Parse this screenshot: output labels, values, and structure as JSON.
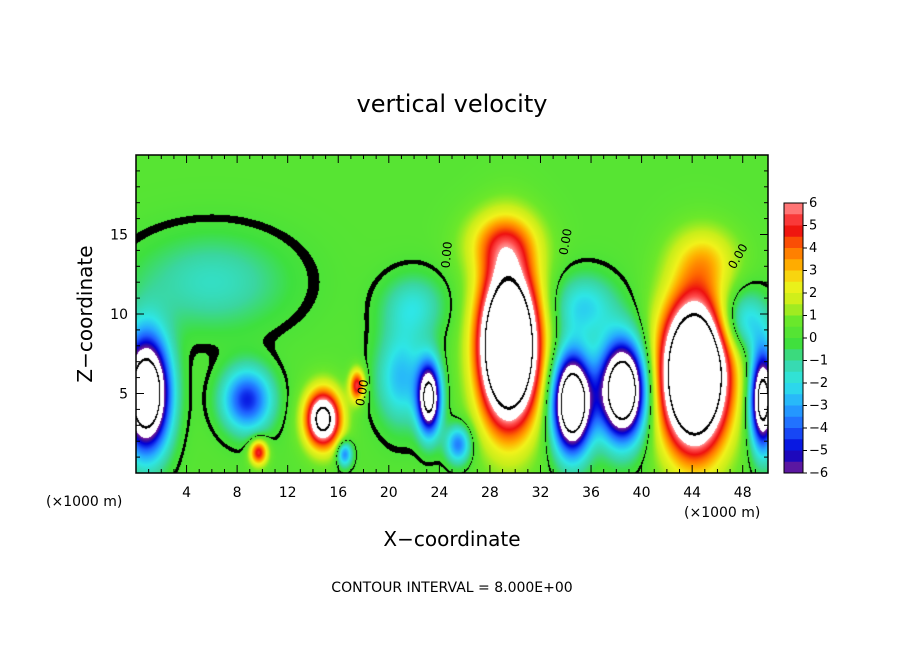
{
  "chart_data": {
    "type": "heatmap",
    "title": "vertical velocity",
    "xlabel": "X−coordinate",
    "ylabel": "Z−coordinate",
    "x_unit_left": "(×1000 m)",
    "x_unit_right": "(×1000 m)",
    "xlim": [
      0,
      50
    ],
    "ylim": [
      0,
      20
    ],
    "x_ticks": [
      4,
      8,
      12,
      16,
      20,
      24,
      28,
      32,
      36,
      40,
      44,
      48
    ],
    "x_tick_labels": [
      "4",
      "8",
      "12",
      "16",
      "20",
      "24",
      "28",
      "32",
      "36",
      "40",
      "44",
      "48"
    ],
    "y_ticks": [
      5,
      10,
      15
    ],
    "y_tick_labels": [
      "5",
      "10",
      "15"
    ],
    "colorbar": {
      "min": -6,
      "max": 6,
      "ticks": [
        6,
        5,
        4,
        3,
        2,
        1,
        0,
        -1,
        -2,
        -3,
        -4,
        -5,
        -6
      ],
      "tick_labels": [
        "6",
        "5",
        "4",
        "3",
        "2",
        "1",
        "0",
        "−1",
        "−2",
        "−3",
        "−4",
        "−5",
        "−6"
      ],
      "colors": [
        "#7b1fa2",
        "#3a0fa0",
        "#0000d8",
        "#1f5fff",
        "#26aaff",
        "#2ee6e6",
        "#3ad6a0",
        "#3ee03e",
        "#9be81c",
        "#f2f21a",
        "#ffb000",
        "#ff6a00",
        "#ee1010",
        "#ff4040",
        "#ff9090",
        "#ffffff"
      ]
    },
    "background_value": 0.3,
    "features": [
      {
        "kind": "updraft",
        "x": 29.5,
        "z": 8.0,
        "amp": 15,
        "sx": 2.3,
        "sz": 4.8
      },
      {
        "kind": "updraft",
        "x": 44.2,
        "z": 6.2,
        "amp": 15,
        "sx": 2.6,
        "sz": 4.6
      },
      {
        "kind": "updraft",
        "x": 14.8,
        "z": 3.4,
        "amp": 9,
        "sx": 1.4,
        "sz": 1.8
      },
      {
        "kind": "updraft",
        "x": 9.7,
        "z": 1.3,
        "amp": 5,
        "sx": 0.7,
        "sz": 0.8
      },
      {
        "kind": "updraft",
        "x": 17.5,
        "z": 5.5,
        "amp": 5,
        "sx": 0.6,
        "sz": 1.0
      },
      {
        "kind": "updraft",
        "x": 29.0,
        "z": 14.5,
        "amp": 3,
        "sx": 2.8,
        "sz": 2.0
      },
      {
        "kind": "updraft",
        "x": 45.0,
        "z": 13.5,
        "amp": 2,
        "sx": 2.6,
        "sz": 2.0
      },
      {
        "kind": "downdraft",
        "x": 0.8,
        "z": 5.0,
        "amp": -12,
        "sx": 1.8,
        "sz": 3.5
      },
      {
        "kind": "downdraft",
        "x": 34.5,
        "z": 4.4,
        "amp": -12,
        "sx": 1.5,
        "sz": 3.0
      },
      {
        "kind": "downdraft",
        "x": 38.5,
        "z": 5.2,
        "amp": -12,
        "sx": 1.8,
        "sz": 3.0
      },
      {
        "kind": "downdraft",
        "x": 23.2,
        "z": 4.7,
        "amp": -9,
        "sx": 0.9,
        "sz": 2.2
      },
      {
        "kind": "downdraft",
        "x": 49.6,
        "z": 4.6,
        "amp": -10,
        "sx": 1.0,
        "sz": 3.0
      },
      {
        "kind": "downdraft",
        "x": 8.8,
        "z": 4.6,
        "amp": -5,
        "sx": 2.0,
        "sz": 2.0
      },
      {
        "kind": "downdraft",
        "x": 21.0,
        "z": 6.0,
        "amp": -3,
        "sx": 2.0,
        "sz": 3.0
      },
      {
        "kind": "downdraft",
        "x": 25.5,
        "z": 1.8,
        "amp": -4,
        "sx": 1.0,
        "sz": 1.2
      },
      {
        "kind": "downdraft",
        "x": 16.5,
        "z": 1.2,
        "amp": -4,
        "sx": 0.6,
        "sz": 0.8
      },
      {
        "kind": "downdraft",
        "x": 6.0,
        "z": 12.0,
        "amp": -1.8,
        "sx": 6.0,
        "sz": 3.0
      },
      {
        "kind": "downdraft",
        "x": 22.0,
        "z": 10.5,
        "amp": -2,
        "sx": 2.5,
        "sz": 2.0
      },
      {
        "kind": "downdraft",
        "x": 35.5,
        "z": 10.5,
        "amp": -2.5,
        "sx": 2.5,
        "sz": 2.0
      },
      {
        "kind": "downdraft",
        "x": 48.0,
        "z": 9.5,
        "amp": -3,
        "sx": 2.0,
        "sz": 2.0
      }
    ],
    "contour_labels": [
      {
        "text": "0.00",
        "x": 24.9,
        "z": 13.7,
        "angle": -85
      },
      {
        "text": "0.00",
        "x": 34.3,
        "z": 14.5,
        "angle": -80
      },
      {
        "text": "0.00",
        "x": 47.9,
        "z": 13.5,
        "angle": -60
      },
      {
        "text": "0.00",
        "x": 18.2,
        "z": 5.0,
        "angle": -80
      }
    ],
    "contour_interval_text": "CONTOUR INTERVAL = 8.000E+00"
  }
}
